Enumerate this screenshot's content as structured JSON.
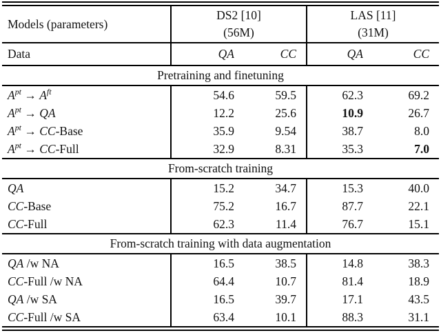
{
  "table": {
    "corner_label": "Models (parameters)",
    "data_label": "Data",
    "model_groups": [
      {
        "name": "DS2 [10]",
        "params": "(56M)"
      },
      {
        "name": "LAS [11]",
        "params": "(31M)"
      }
    ],
    "metric_headers": [
      "QA",
      "CC",
      "QA",
      "CC"
    ],
    "sections": [
      {
        "title": "Pretraining and finetuning",
        "rows": [
          {
            "label_parts": [
              {
                "t": "A",
                "i": true
              },
              {
                "t": "pt",
                "i": true,
                "sup": true
              },
              {
                "t": " → "
              },
              {
                "t": "A",
                "i": true
              },
              {
                "t": "ft",
                "i": true,
                "sup": true
              }
            ],
            "values": [
              {
                "t": "54.6"
              },
              {
                "t": "59.5"
              },
              {
                "t": "62.3"
              },
              {
                "t": "69.2"
              }
            ]
          },
          {
            "label_parts": [
              {
                "t": "A",
                "i": true
              },
              {
                "t": "pt",
                "i": true,
                "sup": true
              },
              {
                "t": " → "
              },
              {
                "t": "QA",
                "i": true
              }
            ],
            "values": [
              {
                "t": "12.2"
              },
              {
                "t": "25.6"
              },
              {
                "t": "10.9",
                "b": true
              },
              {
                "t": "26.7"
              }
            ]
          },
          {
            "label_parts": [
              {
                "t": "A",
                "i": true
              },
              {
                "t": "pt",
                "i": true,
                "sup": true
              },
              {
                "t": " → "
              },
              {
                "t": "CC",
                "i": true
              },
              {
                "t": "-Base"
              }
            ],
            "values": [
              {
                "t": "35.9"
              },
              {
                "t": "9.54"
              },
              {
                "t": "38.7"
              },
              {
                "t": "8.0"
              }
            ]
          },
          {
            "label_parts": [
              {
                "t": "A",
                "i": true
              },
              {
                "t": "pt",
                "i": true,
                "sup": true
              },
              {
                "t": " → "
              },
              {
                "t": "CC",
                "i": true
              },
              {
                "t": "-Full"
              }
            ],
            "values": [
              {
                "t": "32.9"
              },
              {
                "t": "8.31"
              },
              {
                "t": "35.3"
              },
              {
                "t": "7.0",
                "b": true
              }
            ]
          }
        ]
      },
      {
        "title": "From-scratch training",
        "rows": [
          {
            "label_parts": [
              {
                "t": "QA",
                "i": true
              }
            ],
            "values": [
              {
                "t": "15.2"
              },
              {
                "t": "34.7"
              },
              {
                "t": "15.3"
              },
              {
                "t": "40.0"
              }
            ]
          },
          {
            "label_parts": [
              {
                "t": "CC",
                "i": true
              },
              {
                "t": "-Base"
              }
            ],
            "values": [
              {
                "t": "75.2"
              },
              {
                "t": "16.7"
              },
              {
                "t": "87.7"
              },
              {
                "t": "22.1"
              }
            ]
          },
          {
            "label_parts": [
              {
                "t": "CC",
                "i": true
              },
              {
                "t": "-Full"
              }
            ],
            "values": [
              {
                "t": "62.3"
              },
              {
                "t": "11.4"
              },
              {
                "t": "76.7"
              },
              {
                "t": "15.1"
              }
            ]
          }
        ]
      },
      {
        "title": "From-scratch training with data augmentation",
        "rows": [
          {
            "label_parts": [
              {
                "t": "QA",
                "i": true
              },
              {
                "t": " /w NA"
              }
            ],
            "values": [
              {
                "t": "16.5"
              },
              {
                "t": "38.5"
              },
              {
                "t": "14.8"
              },
              {
                "t": "38.3"
              }
            ]
          },
          {
            "label_parts": [
              {
                "t": "CC",
                "i": true
              },
              {
                "t": "-Full /w NA"
              }
            ],
            "values": [
              {
                "t": "64.4"
              },
              {
                "t": "10.7"
              },
              {
                "t": "81.4"
              },
              {
                "t": "18.9"
              }
            ]
          },
          {
            "label_parts": [
              {
                "t": "QA",
                "i": true
              },
              {
                "t": " /w SA"
              }
            ],
            "values": [
              {
                "t": "16.5"
              },
              {
                "t": "39.7"
              },
              {
                "t": "17.1"
              },
              {
                "t": "43.5"
              }
            ]
          },
          {
            "label_parts": [
              {
                "t": "CC",
                "i": true
              },
              {
                "t": "-Full /w SA"
              }
            ],
            "values": [
              {
                "t": "63.4"
              },
              {
                "t": "10.1"
              },
              {
                "t": "88.3"
              },
              {
                "t": "31.1"
              }
            ]
          }
        ]
      }
    ]
  },
  "chart_data": {
    "type": "table",
    "columns": [
      "Data",
      "DS2 QA",
      "DS2 CC",
      "LAS QA",
      "LAS CC"
    ],
    "model_columns": [
      {
        "model": "DS2 [10]",
        "parameters": "56M"
      },
      {
        "model": "LAS [11]",
        "parameters": "31M"
      }
    ],
    "sections": [
      {
        "title": "Pretraining and finetuning",
        "rows": [
          [
            "A^pt → A^ft",
            54.6,
            59.5,
            62.3,
            69.2
          ],
          [
            "A^pt → QA",
            12.2,
            25.6,
            10.9,
            26.7
          ],
          [
            "A^pt → CC-Base",
            35.9,
            9.54,
            38.7,
            8.0
          ],
          [
            "A^pt → CC-Full",
            32.9,
            8.31,
            35.3,
            7.0
          ]
        ]
      },
      {
        "title": "From-scratch training",
        "rows": [
          [
            "QA",
            15.2,
            34.7,
            15.3,
            40.0
          ],
          [
            "CC-Base",
            75.2,
            16.7,
            87.7,
            22.1
          ],
          [
            "CC-Full",
            62.3,
            11.4,
            76.7,
            15.1
          ]
        ]
      },
      {
        "title": "From-scratch training with data augmentation",
        "rows": [
          [
            "QA /w NA",
            16.5,
            38.5,
            14.8,
            38.3
          ],
          [
            "CC-Full /w NA",
            64.4,
            10.7,
            81.4,
            18.9
          ],
          [
            "QA /w SA",
            16.5,
            39.7,
            17.1,
            43.5
          ],
          [
            "CC-Full /w SA",
            63.4,
            10.1,
            88.3,
            31.1
          ]
        ]
      }
    ],
    "bold_cells": [
      {
        "row": "A^pt → QA",
        "column": "LAS QA",
        "value": 10.9
      },
      {
        "row": "A^pt → CC-Full",
        "column": "LAS CC",
        "value": 7.0
      }
    ]
  }
}
